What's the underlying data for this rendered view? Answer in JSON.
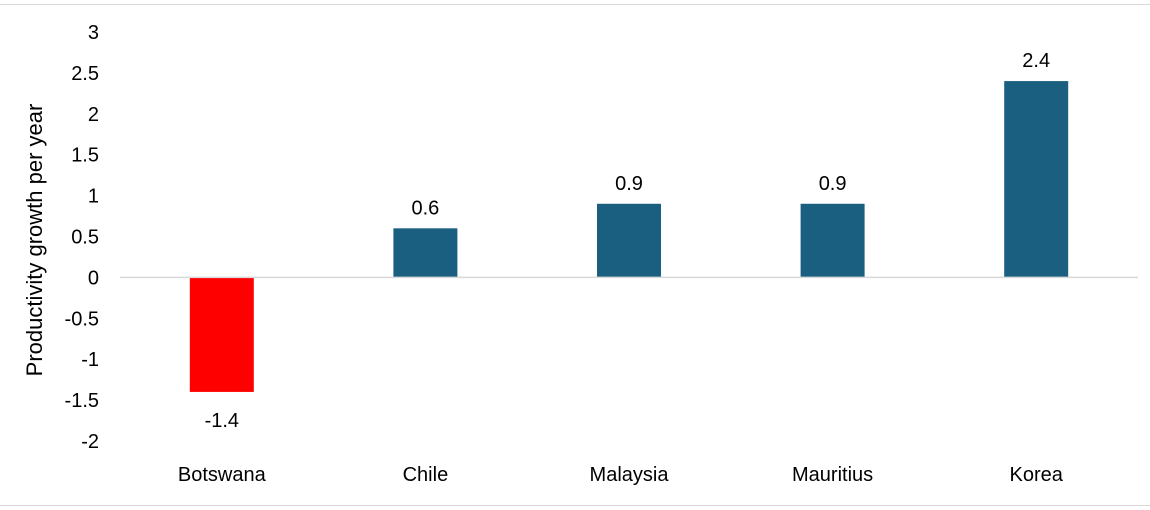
{
  "chart_data": {
    "type": "bar",
    "categories": [
      "Botswana",
      "Chile",
      "Malaysia",
      "Mauritius",
      "Korea"
    ],
    "values": [
      -1.4,
      0.6,
      0.9,
      0.9,
      2.4
    ],
    "data_labels": [
      "-1.4",
      "0.6",
      "0.9",
      "0.9",
      "2.4"
    ],
    "bar_colors": [
      "#ff0000",
      "#1a5f7f",
      "#1a5f7f",
      "#1a5f7f",
      "#1a5f7f"
    ],
    "title": "",
    "xlabel": "",
    "ylabel": "Productivity growth per year",
    "ylim": [
      -2,
      3
    ],
    "yticks": [
      3,
      2.5,
      2,
      1.5,
      1,
      0.5,
      0,
      -0.5,
      -1,
      -1.5,
      -2
    ],
    "ytick_labels": [
      "3",
      "2.5",
      "2",
      "1.5",
      "1",
      "0.5",
      "0",
      "-0.5",
      "-1",
      "-1.5",
      "-2"
    ],
    "grid": false,
    "legend": "none"
  }
}
